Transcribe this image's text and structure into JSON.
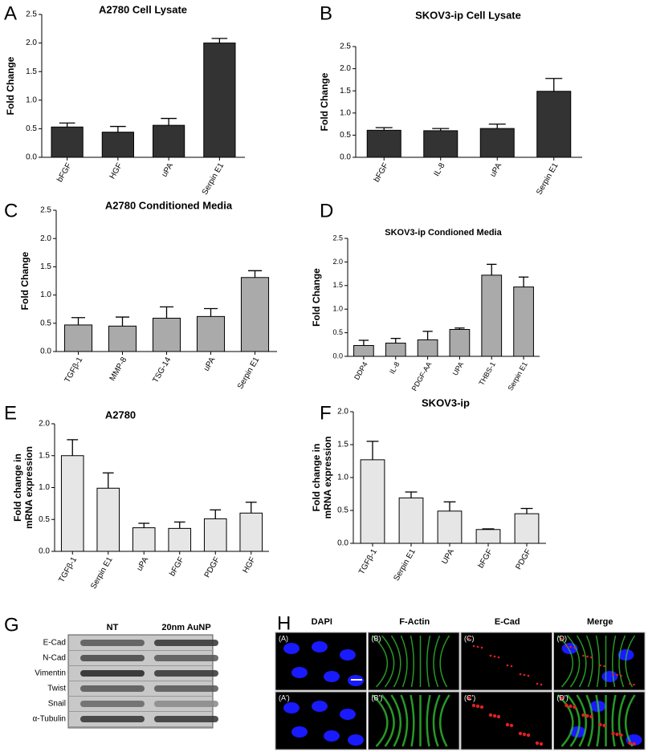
{
  "chart_data": [
    {
      "type": "bar",
      "label": "A",
      "title": "A2780 Cell Lysate",
      "ylabel": "Fold Change",
      "color": "#333333",
      "categories": [
        "bFGF",
        "HGF",
        "uPA",
        "Serpin E1"
      ],
      "values": [
        0.53,
        0.44,
        0.56,
        2.0
      ],
      "errors": [
        0.07,
        0.1,
        0.12,
        0.08
      ],
      "ylim": [
        0,
        2.5
      ],
      "yticks": [
        {
          "value": 0,
          "label": "0.0"
        },
        0.5,
        {
          "value": 1,
          "label": "1.0"
        },
        1.5,
        {
          "value": 2,
          "label": "2.0"
        },
        2.5
      ]
    },
    {
      "type": "bar",
      "label": "B",
      "title": "SKOV3-ip Cell Lysate",
      "ylabel": "Fold Change",
      "color": "#333333",
      "categories": [
        "bFGF",
        "IL-8",
        "uPA",
        "Serpin E1"
      ],
      "values": [
        0.61,
        0.6,
        0.65,
        1.49
      ],
      "errors": [
        0.06,
        0.05,
        0.1,
        0.29
      ],
      "ylim": [
        0,
        2.5
      ],
      "yticks": [
        {
          "value": 0,
          "label": "0.0"
        },
        0.5,
        {
          "value": 1,
          "label": "1.0"
        },
        1.5,
        {
          "value": 2,
          "label": "2.0"
        },
        2.5
      ]
    },
    {
      "type": "bar",
      "label": "C",
      "title": "A2780 Conditioned Media",
      "ylabel": "Fold Change",
      "color": "#aaaaaa",
      "categories": [
        "TGFβ-1",
        "MMP-8",
        "TSG-14",
        "uPA",
        "Serpin  E1"
      ],
      "values": [
        0.47,
        0.45,
        0.59,
        0.62,
        1.31
      ],
      "errors": [
        0.13,
        0.16,
        0.2,
        0.14,
        0.12
      ],
      "ylim": [
        0,
        2.5
      ],
      "yticks": [
        {
          "value": 0,
          "label": "0.0"
        },
        0.5,
        {
          "value": 1,
          "label": "1.0"
        },
        1.5,
        {
          "value": 2,
          "label": "2.0"
        },
        2.5
      ]
    },
    {
      "type": "bar",
      "label": "D",
      "title": "SKOV3-ip Condioned Media",
      "ylabel": "Fold Change",
      "color": "#aaaaaa",
      "categories": [
        "DDP4",
        "IL-8",
        "PDGF-AA",
        "UPA",
        "THBS-1",
        "Serpin  E1"
      ],
      "values": [
        0.23,
        0.28,
        0.35,
        0.57,
        1.72,
        1.47
      ],
      "errors": [
        0.11,
        0.1,
        0.18,
        0.03,
        0.23,
        0.21
      ],
      "ylim": [
        0,
        2.5
      ],
      "yticks": [
        {
          "value": 0,
          "label": "0.0"
        },
        0.5,
        {
          "value": 1,
          "label": "1.0"
        },
        1.5,
        {
          "value": 2,
          "label": "2.0"
        },
        2.5
      ]
    },
    {
      "type": "bar",
      "label": "E",
      "title": "A2780",
      "ylabel": [
        "Fold change in",
        "mRNA expression"
      ],
      "color": "#e6e6e6",
      "categories": [
        "TGFβ-1",
        "Serpin E1",
        "uPA",
        "bFGF",
        "PDGF",
        "HGF"
      ],
      "values": [
        1.5,
        0.99,
        0.37,
        0.36,
        0.51,
        0.6
      ],
      "errors": [
        0.25,
        0.24,
        0.07,
        0.1,
        0.14,
        0.17
      ],
      "ylim": [
        0,
        2
      ],
      "yticks": [
        {
          "value": 0,
          "label": "0.0"
        },
        0.5,
        {
          "value": 1,
          "label": "1.0"
        },
        1.5,
        {
          "value": 2,
          "label": "2.0"
        }
      ]
    },
    {
      "type": "bar",
      "label": "F",
      "title": "SKOV3-ip",
      "ylabel": [
        "Fold change in",
        "mRNA expression"
      ],
      "color": "#e6e6e6",
      "categories": [
        "TGFβ-1",
        "Serpin E1",
        "UPA",
        "bFGF",
        "PDGF"
      ],
      "values": [
        1.27,
        0.69,
        0.49,
        0.21,
        0.45
      ],
      "errors": [
        0.28,
        0.09,
        0.14,
        0.01,
        0.08
      ],
      "ylim": [
        0,
        2
      ],
      "yticks": [
        {
          "value": 0,
          "label": "0.0"
        },
        0.5,
        {
          "value": 1,
          "label": "1.0"
        },
        1.5,
        {
          "value": 2,
          "label": "2.0"
        }
      ]
    }
  ],
  "blot": {
    "label": "G",
    "columns": [
      "NT",
      "20nm AuNP"
    ],
    "rows": [
      "E-Cad",
      "N-Cad",
      "Vimentin",
      "Twist",
      "Snail",
      "α-Tubulin"
    ]
  },
  "micrograph": {
    "label": "H",
    "columns": [
      "DAPI",
      "F-Actin",
      "E-Cad",
      "Merge"
    ],
    "tags": [
      [
        "(A)",
        "(B)",
        "(C)",
        "(D)"
      ],
      [
        "(A')",
        "(B')",
        "(C')",
        "(D')"
      ]
    ]
  }
}
